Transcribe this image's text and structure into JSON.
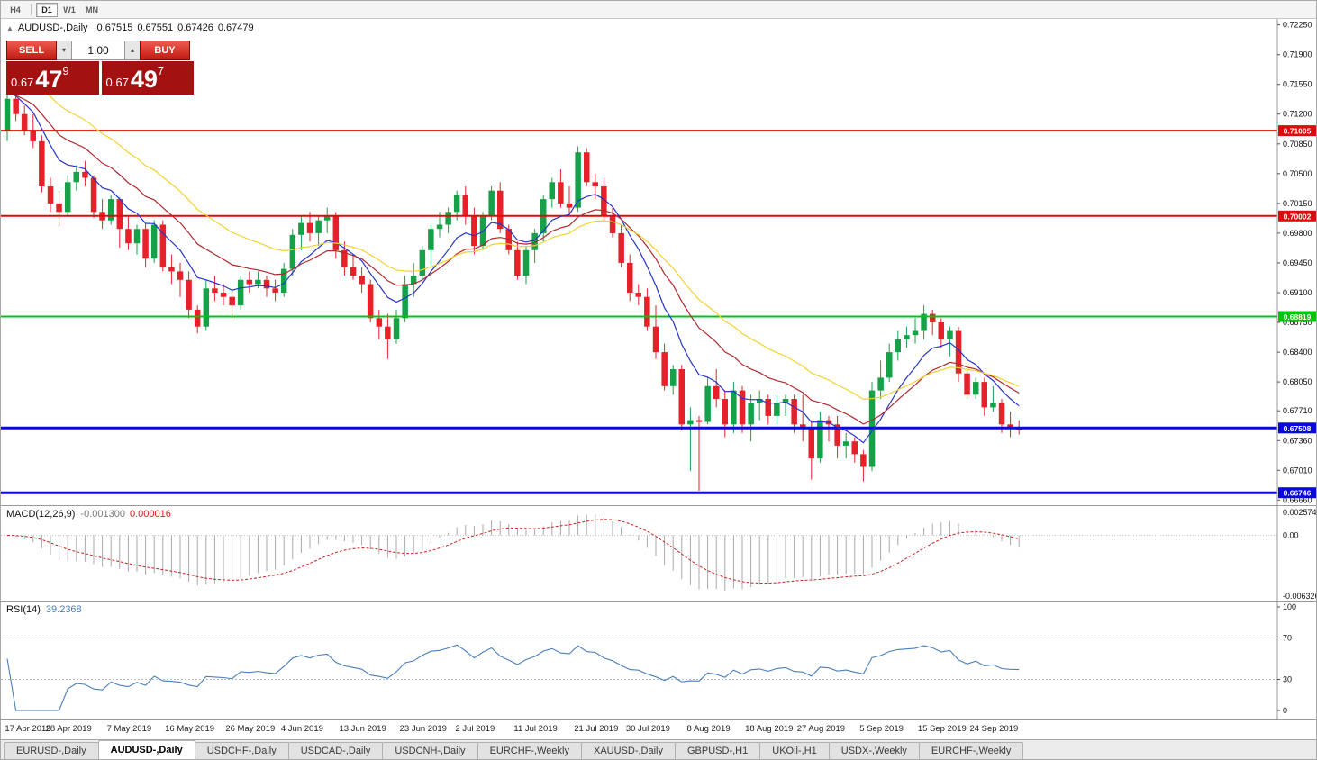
{
  "toolbar": {
    "timeframes": [
      {
        "label": "H4",
        "active": false
      },
      {
        "label": "D1",
        "active": true
      },
      {
        "label": "W1",
        "active": false
      },
      {
        "label": "MN",
        "active": false
      }
    ]
  },
  "chart_header": {
    "symbol": "AUDUSD-,Daily",
    "open": "0.67515",
    "high": "0.67551",
    "low": "0.67426",
    "close": "0.67479"
  },
  "trade_panel": {
    "sell_label": "SELL",
    "buy_label": "BUY",
    "volume": "1.00",
    "sell_price": {
      "prefix": "0.67",
      "big": "47",
      "sup": "9"
    },
    "buy_price": {
      "prefix": "0.67",
      "big": "49",
      "sup": "7"
    }
  },
  "icons": {
    "spin_down": "▾",
    "spin_up": "▴",
    "title_marker": "▲"
  },
  "macd_panel": {
    "label": "MACD(12,26,9)",
    "value1": "-0.001300",
    "value2": "0.000016",
    "scale": [
      "0.0025740",
      "0.00",
      "-0.0063260"
    ]
  },
  "rsi_panel": {
    "label": "RSI(14)",
    "value": "39.2368",
    "scale": [
      "100",
      "70",
      "30",
      "0"
    ]
  },
  "bottom_tabs": [
    {
      "label": "EURUSD-,Daily",
      "active": false
    },
    {
      "label": "AUDUSD-,Daily",
      "active": true
    },
    {
      "label": "USDCHF-,Daily",
      "active": false
    },
    {
      "label": "USDCAD-,Daily",
      "active": false
    },
    {
      "label": "USDCNH-,Daily",
      "active": false
    },
    {
      "label": "EURCHF-,Weekly",
      "active": false
    },
    {
      "label": "XAUUSD-,Daily",
      "active": false
    },
    {
      "label": "GBPUSD-,H1",
      "active": false
    },
    {
      "label": "UKOil-,H1",
      "active": false
    },
    {
      "label": "USDX-,Weekly",
      "active": false
    },
    {
      "label": "EURCHF-,Weekly",
      "active": false
    }
  ],
  "chart_data": {
    "type": "candlestick",
    "symbol": "AUDUSD",
    "timeframe": "Daily",
    "y_range": [
      0.666,
      0.7232
    ],
    "y_ticks": [
      0.7225,
      0.719,
      0.7155,
      0.712,
      0.7085,
      0.705,
      0.7015,
      0.698,
      0.6945,
      0.691,
      0.6875,
      0.684,
      0.6805,
      0.6771,
      0.6736,
      0.6701,
      0.6666
    ],
    "levels": [
      {
        "value": 0.71005,
        "label": "0.71005",
        "color": "#dd0c0c",
        "width": 2
      },
      {
        "value": 0.70002,
        "label": "0.70002",
        "color": "#dd0c0c",
        "width": 2
      },
      {
        "value": 0.68819,
        "label": "0.68819",
        "color": "#00c40c",
        "width": 2
      },
      {
        "value": 0.67508,
        "label": "0.67508",
        "color": "#0a0ad8",
        "width": 3
      },
      {
        "value": 0.66746,
        "label": "0.66746",
        "color": "#0a0ad8",
        "width": 3
      }
    ],
    "moving_averages": [
      {
        "name": "ma-fast-blue",
        "period": 8,
        "color": "#2634c8",
        "seed_offset": 0.0012
      },
      {
        "name": "ma-mid-red",
        "period": 16,
        "color": "#b02a30",
        "seed_offset": 0.0008
      },
      {
        "name": "ma-slow-yellow",
        "period": 26,
        "color": "#f0d232",
        "seed_offset": 0.004
      }
    ],
    "colors": {
      "up": "#14a147",
      "down": "#e6212a"
    },
    "macd": {
      "fast": 12,
      "slow": 26,
      "signal": 9,
      "range": [
        -0.006326,
        0.002574
      ],
      "histogram_color": "#a8a8a8",
      "signal_color": "#cc2222"
    },
    "rsi": {
      "period": 14,
      "levels": [
        30,
        70
      ],
      "color": "#4a7ebc"
    },
    "x_labels": [
      {
        "text": "17 Apr 2019",
        "i": 0
      },
      {
        "text": "28 Apr 2019",
        "i": 7
      },
      {
        "text": "7 May 2019",
        "i": 14
      },
      {
        "text": "16 May 2019",
        "i": 21
      },
      {
        "text": "26 May 2019",
        "i": 28
      },
      {
        "text": "4 Jun 2019",
        "i": 34
      },
      {
        "text": "13 Jun 2019",
        "i": 41
      },
      {
        "text": "23 Jun 2019",
        "i": 48
      },
      {
        "text": "2 Jul 2019",
        "i": 54
      },
      {
        "text": "11 Jul 2019",
        "i": 61
      },
      {
        "text": "21 Jul 2019",
        "i": 68
      },
      {
        "text": "30 Jul 2019",
        "i": 74
      },
      {
        "text": "8 Aug 2019",
        "i": 81
      },
      {
        "text": "18 Aug 2019",
        "i": 88
      },
      {
        "text": "27 Aug 2019",
        "i": 94
      },
      {
        "text": "5 Sep 2019",
        "i": 101
      },
      {
        "text": "15 Sep 2019",
        "i": 108
      },
      {
        "text": "24 Sep 2019",
        "i": 114
      }
    ],
    "ohlc": [
      [
        0.71,
        0.7145,
        0.7088,
        0.7138
      ],
      [
        0.7138,
        0.7142,
        0.7112,
        0.712
      ],
      [
        0.712,
        0.713,
        0.7095,
        0.71
      ],
      [
        0.71,
        0.712,
        0.708,
        0.7088
      ],
      [
        0.7088,
        0.7095,
        0.7028,
        0.7035
      ],
      [
        0.7035,
        0.7045,
        0.7005,
        0.7015
      ],
      [
        0.7015,
        0.703,
        0.6988,
        0.7005
      ],
      [
        0.7005,
        0.7048,
        0.7,
        0.704
      ],
      [
        0.704,
        0.706,
        0.703,
        0.7052
      ],
      [
        0.7052,
        0.7065,
        0.7035,
        0.7045
      ],
      [
        0.7045,
        0.7048,
        0.6998,
        0.7005
      ],
      [
        0.7005,
        0.702,
        0.6985,
        0.6995
      ],
      [
        0.6995,
        0.7025,
        0.699,
        0.702
      ],
      [
        0.702,
        0.7022,
        0.6963,
        0.6985
      ],
      [
        0.6985,
        0.7,
        0.696,
        0.6968
      ],
      [
        0.6968,
        0.699,
        0.6955,
        0.6985
      ],
      [
        0.6985,
        0.6992,
        0.694,
        0.695
      ],
      [
        0.695,
        0.6995,
        0.6945,
        0.699
      ],
      [
        0.699,
        0.6995,
        0.6935,
        0.694
      ],
      [
        0.694,
        0.6955,
        0.692,
        0.6935
      ],
      [
        0.6935,
        0.6945,
        0.6905,
        0.6925
      ],
      [
        0.6925,
        0.6935,
        0.688,
        0.689
      ],
      [
        0.689,
        0.6895,
        0.6862,
        0.687
      ],
      [
        0.687,
        0.6925,
        0.6865,
        0.6915
      ],
      [
        0.6915,
        0.693,
        0.69,
        0.691
      ],
      [
        0.691,
        0.692,
        0.6895,
        0.6905
      ],
      [
        0.6905,
        0.6915,
        0.688,
        0.6895
      ],
      [
        0.6895,
        0.693,
        0.689,
        0.6925
      ],
      [
        0.6925,
        0.6935,
        0.691,
        0.692
      ],
      [
        0.692,
        0.6935,
        0.6915,
        0.6925
      ],
      [
        0.6925,
        0.693,
        0.6905,
        0.6915
      ],
      [
        0.6915,
        0.6925,
        0.69,
        0.691
      ],
      [
        0.691,
        0.6945,
        0.6905,
        0.6938
      ],
      [
        0.6938,
        0.6985,
        0.693,
        0.6978
      ],
      [
        0.6978,
        0.7,
        0.696,
        0.6992
      ],
      [
        0.6992,
        0.7005,
        0.697,
        0.698
      ],
      [
        0.698,
        0.7,
        0.6965,
        0.6995
      ],
      [
        0.6995,
        0.701,
        0.698,
        0.7
      ],
      [
        0.7,
        0.7005,
        0.695,
        0.696
      ],
      [
        0.696,
        0.697,
        0.693,
        0.694
      ],
      [
        0.694,
        0.6955,
        0.6925,
        0.693
      ],
      [
        0.693,
        0.694,
        0.691,
        0.692
      ],
      [
        0.692,
        0.6925,
        0.6875,
        0.688
      ],
      [
        0.688,
        0.689,
        0.6855,
        0.687
      ],
      [
        0.687,
        0.6885,
        0.6832,
        0.6855
      ],
      [
        0.6855,
        0.689,
        0.685,
        0.688
      ],
      [
        0.688,
        0.693,
        0.6875,
        0.692
      ],
      [
        0.692,
        0.6945,
        0.6905,
        0.693
      ],
      [
        0.693,
        0.6965,
        0.6925,
        0.696
      ],
      [
        0.696,
        0.699,
        0.694,
        0.6985
      ],
      [
        0.6985,
        0.7005,
        0.6975,
        0.699
      ],
      [
        0.699,
        0.701,
        0.698,
        0.7005
      ],
      [
        0.7005,
        0.703,
        0.6995,
        0.7025
      ],
      [
        0.7025,
        0.7035,
        0.699,
        0.7
      ],
      [
        0.7,
        0.701,
        0.6955,
        0.6965
      ],
      [
        0.6965,
        0.7005,
        0.696,
        0.7
      ],
      [
        0.7,
        0.7035,
        0.6995,
        0.703
      ],
      [
        0.703,
        0.704,
        0.698,
        0.6985
      ],
      [
        0.6985,
        0.699,
        0.6955,
        0.696
      ],
      [
        0.696,
        0.697,
        0.6925,
        0.693
      ],
      [
        0.693,
        0.6965,
        0.692,
        0.696
      ],
      [
        0.696,
        0.6985,
        0.6945,
        0.698
      ],
      [
        0.698,
        0.7025,
        0.697,
        0.702
      ],
      [
        0.702,
        0.7045,
        0.701,
        0.704
      ],
      [
        0.704,
        0.7055,
        0.701,
        0.7015
      ],
      [
        0.7015,
        0.7035,
        0.7,
        0.701
      ],
      [
        0.701,
        0.7082,
        0.7005,
        0.7075
      ],
      [
        0.7075,
        0.708,
        0.7035,
        0.704
      ],
      [
        0.704,
        0.705,
        0.702,
        0.7035
      ],
      [
        0.7035,
        0.7045,
        0.6995,
        0.7
      ],
      [
        0.7,
        0.701,
        0.6975,
        0.698
      ],
      [
        0.698,
        0.699,
        0.694,
        0.6945
      ],
      [
        0.6945,
        0.6955,
        0.69,
        0.691
      ],
      [
        0.691,
        0.692,
        0.6895,
        0.6905
      ],
      [
        0.6905,
        0.6915,
        0.6865,
        0.687
      ],
      [
        0.687,
        0.6895,
        0.6832,
        0.684
      ],
      [
        0.684,
        0.685,
        0.6795,
        0.68
      ],
      [
        0.68,
        0.6825,
        0.679,
        0.682
      ],
      [
        0.682,
        0.6825,
        0.6748,
        0.6755
      ],
      [
        0.6755,
        0.6775,
        0.67,
        0.676
      ],
      [
        0.676,
        0.6765,
        0.6677,
        0.6758
      ],
      [
        0.6758,
        0.681,
        0.6755,
        0.68
      ],
      [
        0.68,
        0.682,
        0.6775,
        0.6785
      ],
      [
        0.6785,
        0.6795,
        0.674,
        0.6755
      ],
      [
        0.6755,
        0.6805,
        0.6745,
        0.6795
      ],
      [
        0.6795,
        0.68,
        0.6745,
        0.6755
      ],
      [
        0.6755,
        0.679,
        0.6735,
        0.678
      ],
      [
        0.678,
        0.6795,
        0.676,
        0.6785
      ],
      [
        0.6785,
        0.679,
        0.6755,
        0.6765
      ],
      [
        0.6765,
        0.679,
        0.6755,
        0.678
      ],
      [
        0.678,
        0.679,
        0.6765,
        0.6785
      ],
      [
        0.6785,
        0.679,
        0.6745,
        0.6755
      ],
      [
        0.6755,
        0.679,
        0.6735,
        0.675
      ],
      [
        0.675,
        0.676,
        0.669,
        0.6715
      ],
      [
        0.6715,
        0.677,
        0.671,
        0.676
      ],
      [
        0.676,
        0.6765,
        0.6735,
        0.6755
      ],
      [
        0.6755,
        0.6765,
        0.6715,
        0.673
      ],
      [
        0.673,
        0.6745,
        0.6715,
        0.6735
      ],
      [
        0.6735,
        0.674,
        0.671,
        0.672
      ],
      [
        0.672,
        0.6725,
        0.6688,
        0.6705
      ],
      [
        0.6705,
        0.6805,
        0.67,
        0.6795
      ],
      [
        0.6795,
        0.683,
        0.6785,
        0.681
      ],
      [
        0.681,
        0.685,
        0.6805,
        0.684
      ],
      [
        0.684,
        0.6865,
        0.683,
        0.6855
      ],
      [
        0.6855,
        0.687,
        0.6845,
        0.686
      ],
      [
        0.686,
        0.688,
        0.685,
        0.6865
      ],
      [
        0.6865,
        0.6895,
        0.6855,
        0.6885
      ],
      [
        0.6885,
        0.689,
        0.686,
        0.6875
      ],
      [
        0.6875,
        0.688,
        0.6845,
        0.6855
      ],
      [
        0.6855,
        0.687,
        0.6835,
        0.6865
      ],
      [
        0.6865,
        0.687,
        0.6805,
        0.6815
      ],
      [
        0.6815,
        0.6825,
        0.6785,
        0.679
      ],
      [
        0.679,
        0.681,
        0.6785,
        0.6805
      ],
      [
        0.6805,
        0.681,
        0.6765,
        0.6775
      ],
      [
        0.6775,
        0.68,
        0.677,
        0.678
      ],
      [
        0.678,
        0.6785,
        0.6745,
        0.6755
      ],
      [
        0.6755,
        0.677,
        0.674,
        0.675
      ],
      [
        0.675,
        0.676,
        0.6743,
        0.6748
      ]
    ]
  }
}
